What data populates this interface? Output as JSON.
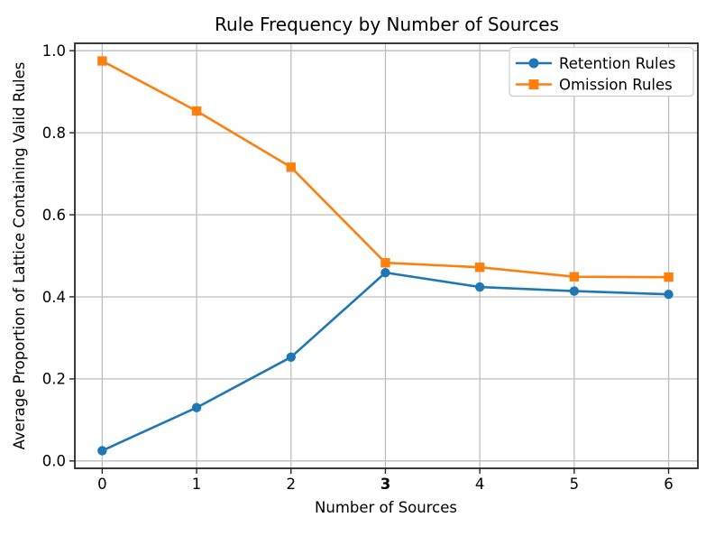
{
  "chart_data": {
    "type": "line",
    "title": "Rule Frequency by Number of Sources",
    "xlabel": "Number of Sources",
    "ylabel": "Average Proportion of Lattice Containing Valid Rules",
    "x": [
      0,
      1,
      2,
      3,
      4,
      5,
      6
    ],
    "series": [
      {
        "name": "Retention Rules",
        "color": "#1f77b4",
        "marker": "circle",
        "values": [
          0.025,
          0.13,
          0.253,
          0.459,
          0.424,
          0.414,
          0.406
        ]
      },
      {
        "name": "Omission Rules",
        "color": "#ff7f0e",
        "marker": "square",
        "values": [
          0.975,
          0.853,
          0.716,
          0.483,
          0.472,
          0.449,
          0.448
        ]
      }
    ],
    "xticks": [
      {
        "label": "0",
        "value": 0,
        "bold": false
      },
      {
        "label": "1",
        "value": 1,
        "bold": false
      },
      {
        "label": "2",
        "value": 2,
        "bold": false
      },
      {
        "label": "3",
        "value": 3,
        "bold": true
      },
      {
        "label": "4",
        "value": 4,
        "bold": false
      },
      {
        "label": "5",
        "value": 5,
        "bold": false
      },
      {
        "label": "6",
        "value": 6,
        "bold": false
      }
    ],
    "yticks": [
      {
        "label": "0.0",
        "value": 0.0
      },
      {
        "label": "0.2",
        "value": 0.2
      },
      {
        "label": "0.4",
        "value": 0.4
      },
      {
        "label": "0.6",
        "value": 0.6
      },
      {
        "label": "0.8",
        "value": 0.8
      },
      {
        "label": "1.0",
        "value": 1.0
      }
    ],
    "xlim": [
      -0.29,
      6.31
    ],
    "ylim": [
      -0.018,
      1.018
    ],
    "grid": true,
    "legend": {
      "position": "upper right"
    },
    "colors": {
      "grid": "#bdbdbd",
      "spine": "#262626",
      "text": "#000000",
      "background": "#ffffff",
      "legend_border": "#cccccc",
      "legend_background": "#ffffff"
    }
  }
}
